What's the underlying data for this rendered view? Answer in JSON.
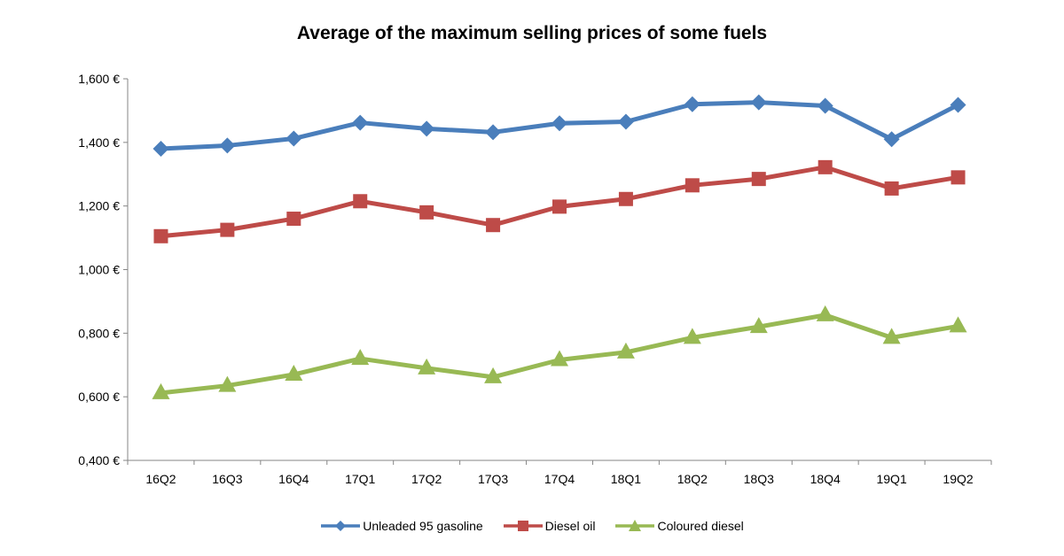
{
  "chart_data": {
    "type": "line",
    "title": "Average of the maximum  selling prices of some fuels",
    "xlabel": "",
    "ylabel": "",
    "categories": [
      "16Q2",
      "16Q3",
      "16Q4",
      "17Q1",
      "17Q2",
      "17Q3",
      "17Q4",
      "18Q1",
      "18Q2",
      "18Q3",
      "18Q4",
      "19Q1",
      "19Q2"
    ],
    "ylim": [
      0.4,
      1.6
    ],
    "y_ticks": [
      {
        "value": 0.4,
        "label": "0,400 €"
      },
      {
        "value": 0.6,
        "label": "0,600 €"
      },
      {
        "value": 0.8,
        "label": "0,800 €"
      },
      {
        "value": 1.0,
        "label": "1,000 €"
      },
      {
        "value": 1.2,
        "label": "1,200 €"
      },
      {
        "value": 1.4,
        "label": "1,400 €"
      },
      {
        "value": 1.6,
        "label": "1,600 €"
      }
    ],
    "grid": false,
    "legend_position": "bottom",
    "series": [
      {
        "name": "Unleaded 95 gasoline",
        "color": "#4a7ebb",
        "marker": "diamond",
        "values": [
          1.38,
          1.39,
          1.412,
          1.462,
          1.443,
          1.432,
          1.46,
          1.465,
          1.52,
          1.526,
          1.515,
          1.41,
          1.518
        ]
      },
      {
        "name": "Diesel oil",
        "color": "#be4b48",
        "marker": "square",
        "values": [
          1.105,
          1.125,
          1.16,
          1.215,
          1.18,
          1.14,
          1.198,
          1.222,
          1.265,
          1.285,
          1.322,
          1.255,
          1.29
        ]
      },
      {
        "name": "Coloured diesel",
        "color": "#98b954",
        "marker": "triangle",
        "values": [
          0.612,
          0.635,
          0.67,
          0.72,
          0.69,
          0.662,
          0.716,
          0.74,
          0.786,
          0.82,
          0.857,
          0.786,
          0.822
        ]
      }
    ]
  }
}
